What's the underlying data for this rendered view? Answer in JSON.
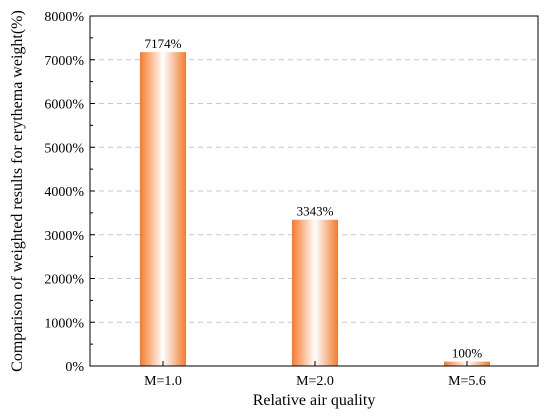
{
  "chart_data": {
    "type": "bar",
    "xlabel": "Relative air quality",
    "ylabel": "Comparison of weighted results for erythema weight(%)",
    "categories": [
      "M=1.0",
      "M=2.0",
      "M=5.6"
    ],
    "values": [
      7174,
      3343,
      100
    ],
    "data_labels": [
      "7174%",
      "3343%",
      "100%"
    ],
    "ylim": [
      0,
      8000
    ],
    "yticks": [
      0,
      1000,
      2000,
      3000,
      4000,
      5000,
      6000,
      7000,
      8000
    ],
    "ytick_labels": [
      "0%",
      "1000%",
      "2000%",
      "3000%",
      "4000%",
      "5000%",
      "6000%",
      "7000%",
      "8000%"
    ],
    "grid": true,
    "legend": false,
    "bar_color": "#f47a2c",
    "bar_highlight": "#ffffff"
  }
}
